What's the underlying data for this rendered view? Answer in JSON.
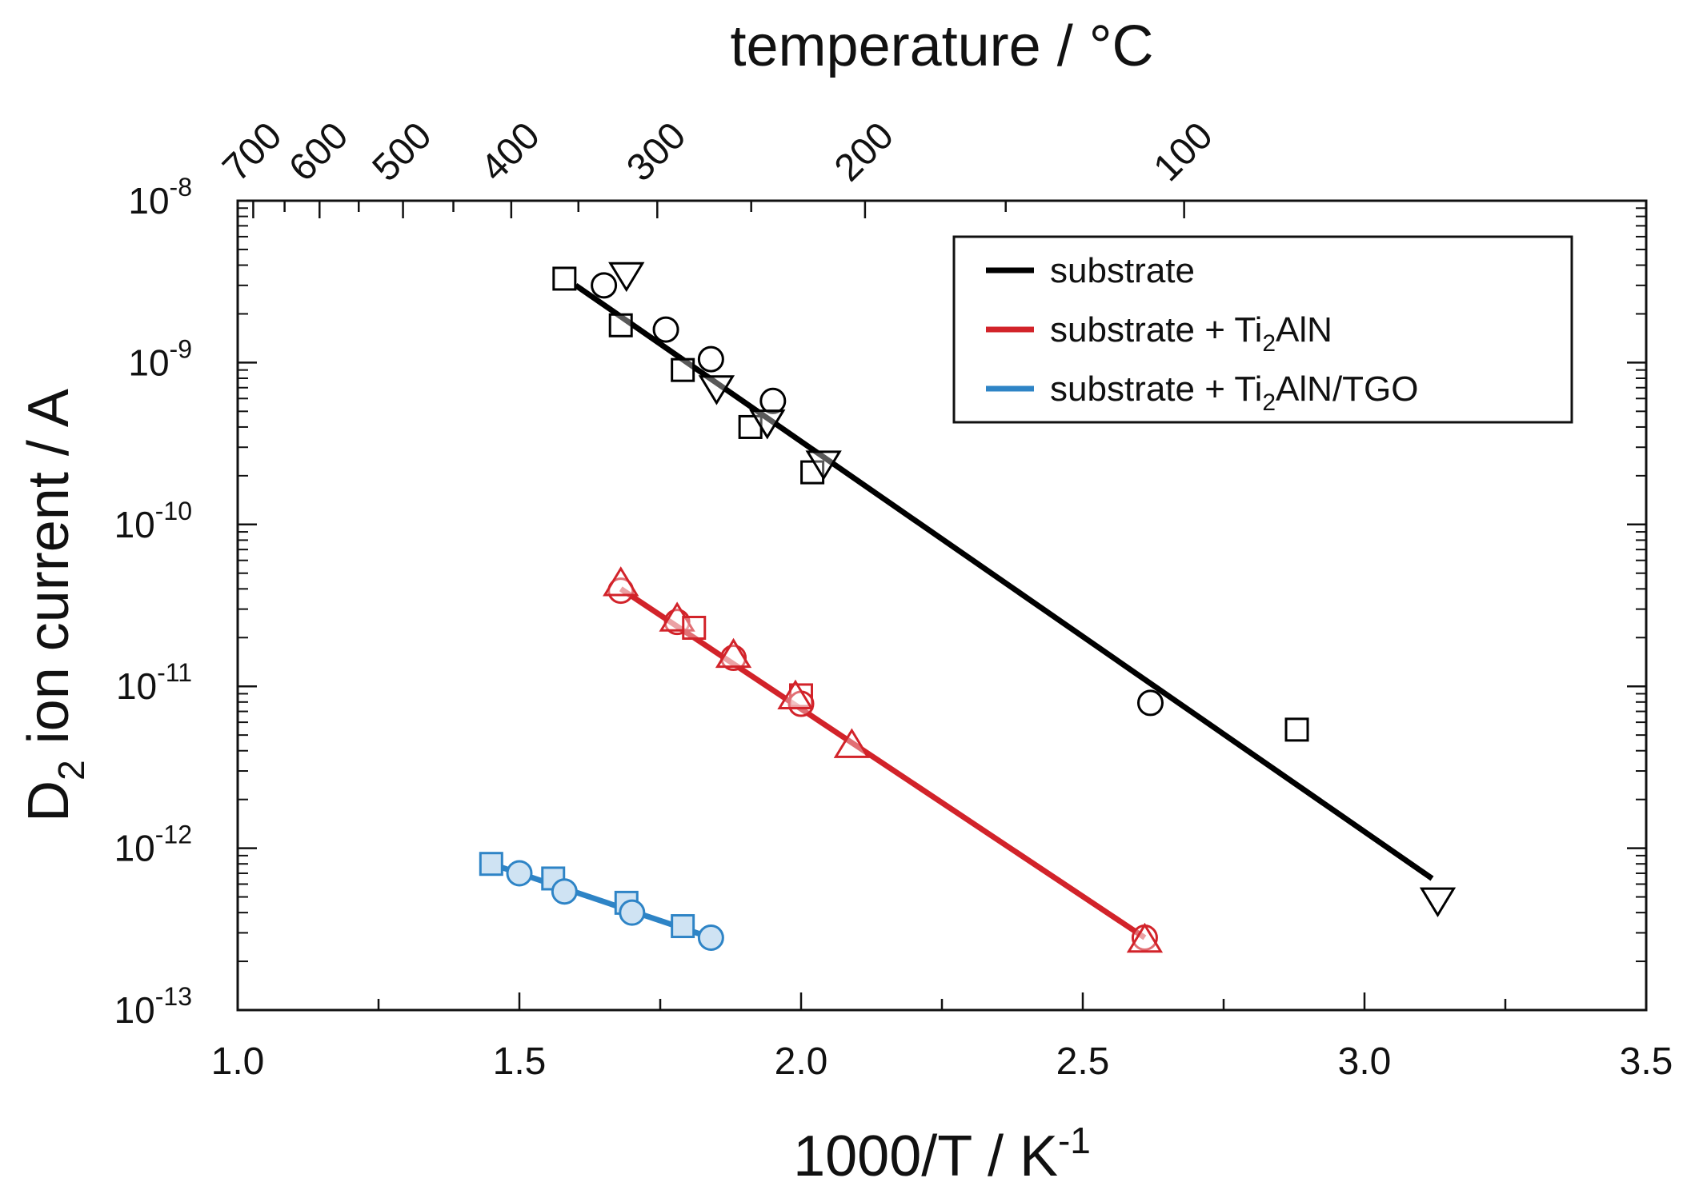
{
  "chart_data": {
    "type": "scatter",
    "top_axis_title": "temperature / °C",
    "top_ticks": [
      {
        "label": "700",
        "celsius": 700
      },
      {
        "label": "600",
        "celsius": 600
      },
      {
        "label": "500",
        "celsius": 500
      },
      {
        "label": "400",
        "celsius": 400
      },
      {
        "label": "300",
        "celsius": 300
      },
      {
        "label": "200",
        "celsius": 200
      },
      {
        "label": "100",
        "celsius": 100
      }
    ],
    "xlabel": {
      "main": "1000/T / K",
      "sup": "-1"
    },
    "ylabel": {
      "pre": "D",
      "sub": "2",
      "post": " ion current / A"
    },
    "xlim": [
      1.0,
      3.5
    ],
    "x_ticks": [
      {
        "value": 1.0,
        "label": "1.0"
      },
      {
        "value": 1.5,
        "label": "1.5"
      },
      {
        "value": 2.0,
        "label": "2.0"
      },
      {
        "value": 2.5,
        "label": "2.5"
      },
      {
        "value": 3.0,
        "label": "3.0"
      },
      {
        "value": 3.5,
        "label": "3.5"
      }
    ],
    "ylim_exp": [
      -13,
      -8
    ],
    "y_ticks": [
      {
        "exp": -8,
        "base": "10",
        "sup": "-8"
      },
      {
        "exp": -9,
        "base": "10",
        "sup": "-9"
      },
      {
        "exp": -10,
        "base": "10",
        "sup": "-10"
      },
      {
        "exp": -11,
        "base": "10",
        "sup": "-11"
      },
      {
        "exp": -12,
        "base": "10",
        "sup": "-12"
      },
      {
        "exp": -13,
        "base": "10",
        "sup": "-13"
      }
    ],
    "legend_position": "top-right",
    "series": [
      {
        "name": "substrate",
        "legend": {
          "pre": "substrate",
          "sub": "",
          "post": ""
        },
        "color": "#000000",
        "fit": [
          [
            1.6,
            3e-09
          ],
          [
            3.12,
            6.5e-13
          ]
        ],
        "points": [
          {
            "marker": "square",
            "x": 1.58,
            "y": 3.3e-09
          },
          {
            "marker": "circle",
            "x": 1.65,
            "y": 3e-09
          },
          {
            "marker": "triangle-down",
            "x": 1.69,
            "y": 3.5e-09
          },
          {
            "marker": "square",
            "x": 1.68,
            "y": 1.7e-09
          },
          {
            "marker": "circle",
            "x": 1.76,
            "y": 1.6e-09
          },
          {
            "marker": "circle",
            "x": 1.84,
            "y": 1.05e-09
          },
          {
            "marker": "square",
            "x": 1.79,
            "y": 9e-10
          },
          {
            "marker": "triangle-down",
            "x": 1.85,
            "y": 7e-10
          },
          {
            "marker": "circle",
            "x": 1.95,
            "y": 5.8e-10
          },
          {
            "marker": "square",
            "x": 1.91,
            "y": 4e-10
          },
          {
            "marker": "triangle-down",
            "x": 1.94,
            "y": 4.3e-10
          },
          {
            "marker": "square",
            "x": 2.02,
            "y": 2.1e-10
          },
          {
            "marker": "triangle-down",
            "x": 2.04,
            "y": 2.4e-10
          },
          {
            "marker": "circle",
            "x": 2.62,
            "y": 7.9e-12
          },
          {
            "marker": "square",
            "x": 2.88,
            "y": 5.4e-12
          },
          {
            "marker": "triangle-down",
            "x": 3.13,
            "y": 4.8e-13
          }
        ]
      },
      {
        "name": "substrate + Ti2AlN",
        "legend": {
          "pre": "substrate + Ti",
          "sub": "2",
          "post": "AlN"
        },
        "color": "#d2232a",
        "fit": [
          [
            1.68,
            4e-11
          ],
          [
            2.61,
            2.8e-13
          ]
        ],
        "points": [
          {
            "marker": "circle",
            "x": 1.68,
            "y": 3.9e-11
          },
          {
            "marker": "triangle-up",
            "x": 1.68,
            "y": 4.3e-11
          },
          {
            "marker": "circle",
            "x": 1.78,
            "y": 2.5e-11
          },
          {
            "marker": "triangle-up",
            "x": 1.78,
            "y": 2.6e-11
          },
          {
            "marker": "square",
            "x": 1.81,
            "y": 2.3e-11
          },
          {
            "marker": "circle",
            "x": 1.88,
            "y": 1.5e-11
          },
          {
            "marker": "triangle-up",
            "x": 1.88,
            "y": 1.55e-11
          },
          {
            "marker": "square",
            "x": 2.0,
            "y": 8.8e-12
          },
          {
            "marker": "circle",
            "x": 2.0,
            "y": 7.8e-12
          },
          {
            "marker": "triangle-up",
            "x": 1.99,
            "y": 8.6e-12
          },
          {
            "marker": "triangle-up",
            "x": 2.09,
            "y": 4.3e-12
          },
          {
            "marker": "circle",
            "x": 2.61,
            "y": 2.8e-13
          },
          {
            "marker": "triangle-up",
            "x": 2.61,
            "y": 2.7e-13
          }
        ]
      },
      {
        "name": "substrate + Ti2AlN/TGO",
        "legend": {
          "pre": "substrate + Ti",
          "sub": "2",
          "post": "AlN/TGO"
        },
        "color": "#2e84c6",
        "fill": "#cfe3f3",
        "fit": [
          [
            1.45,
            8e-13
          ],
          [
            1.84,
            2.8e-13
          ]
        ],
        "points": [
          {
            "marker": "square",
            "x": 1.45,
            "y": 8e-13
          },
          {
            "marker": "circle",
            "x": 1.5,
            "y": 7e-13
          },
          {
            "marker": "square",
            "x": 1.56,
            "y": 6.5e-13
          },
          {
            "marker": "circle",
            "x": 1.58,
            "y": 5.4e-13
          },
          {
            "marker": "square",
            "x": 1.69,
            "y": 4.6e-13
          },
          {
            "marker": "circle",
            "x": 1.7,
            "y": 4e-13
          },
          {
            "marker": "square",
            "x": 1.79,
            "y": 3.3e-13
          },
          {
            "marker": "circle",
            "x": 1.84,
            "y": 2.8e-13
          }
        ]
      }
    ]
  }
}
